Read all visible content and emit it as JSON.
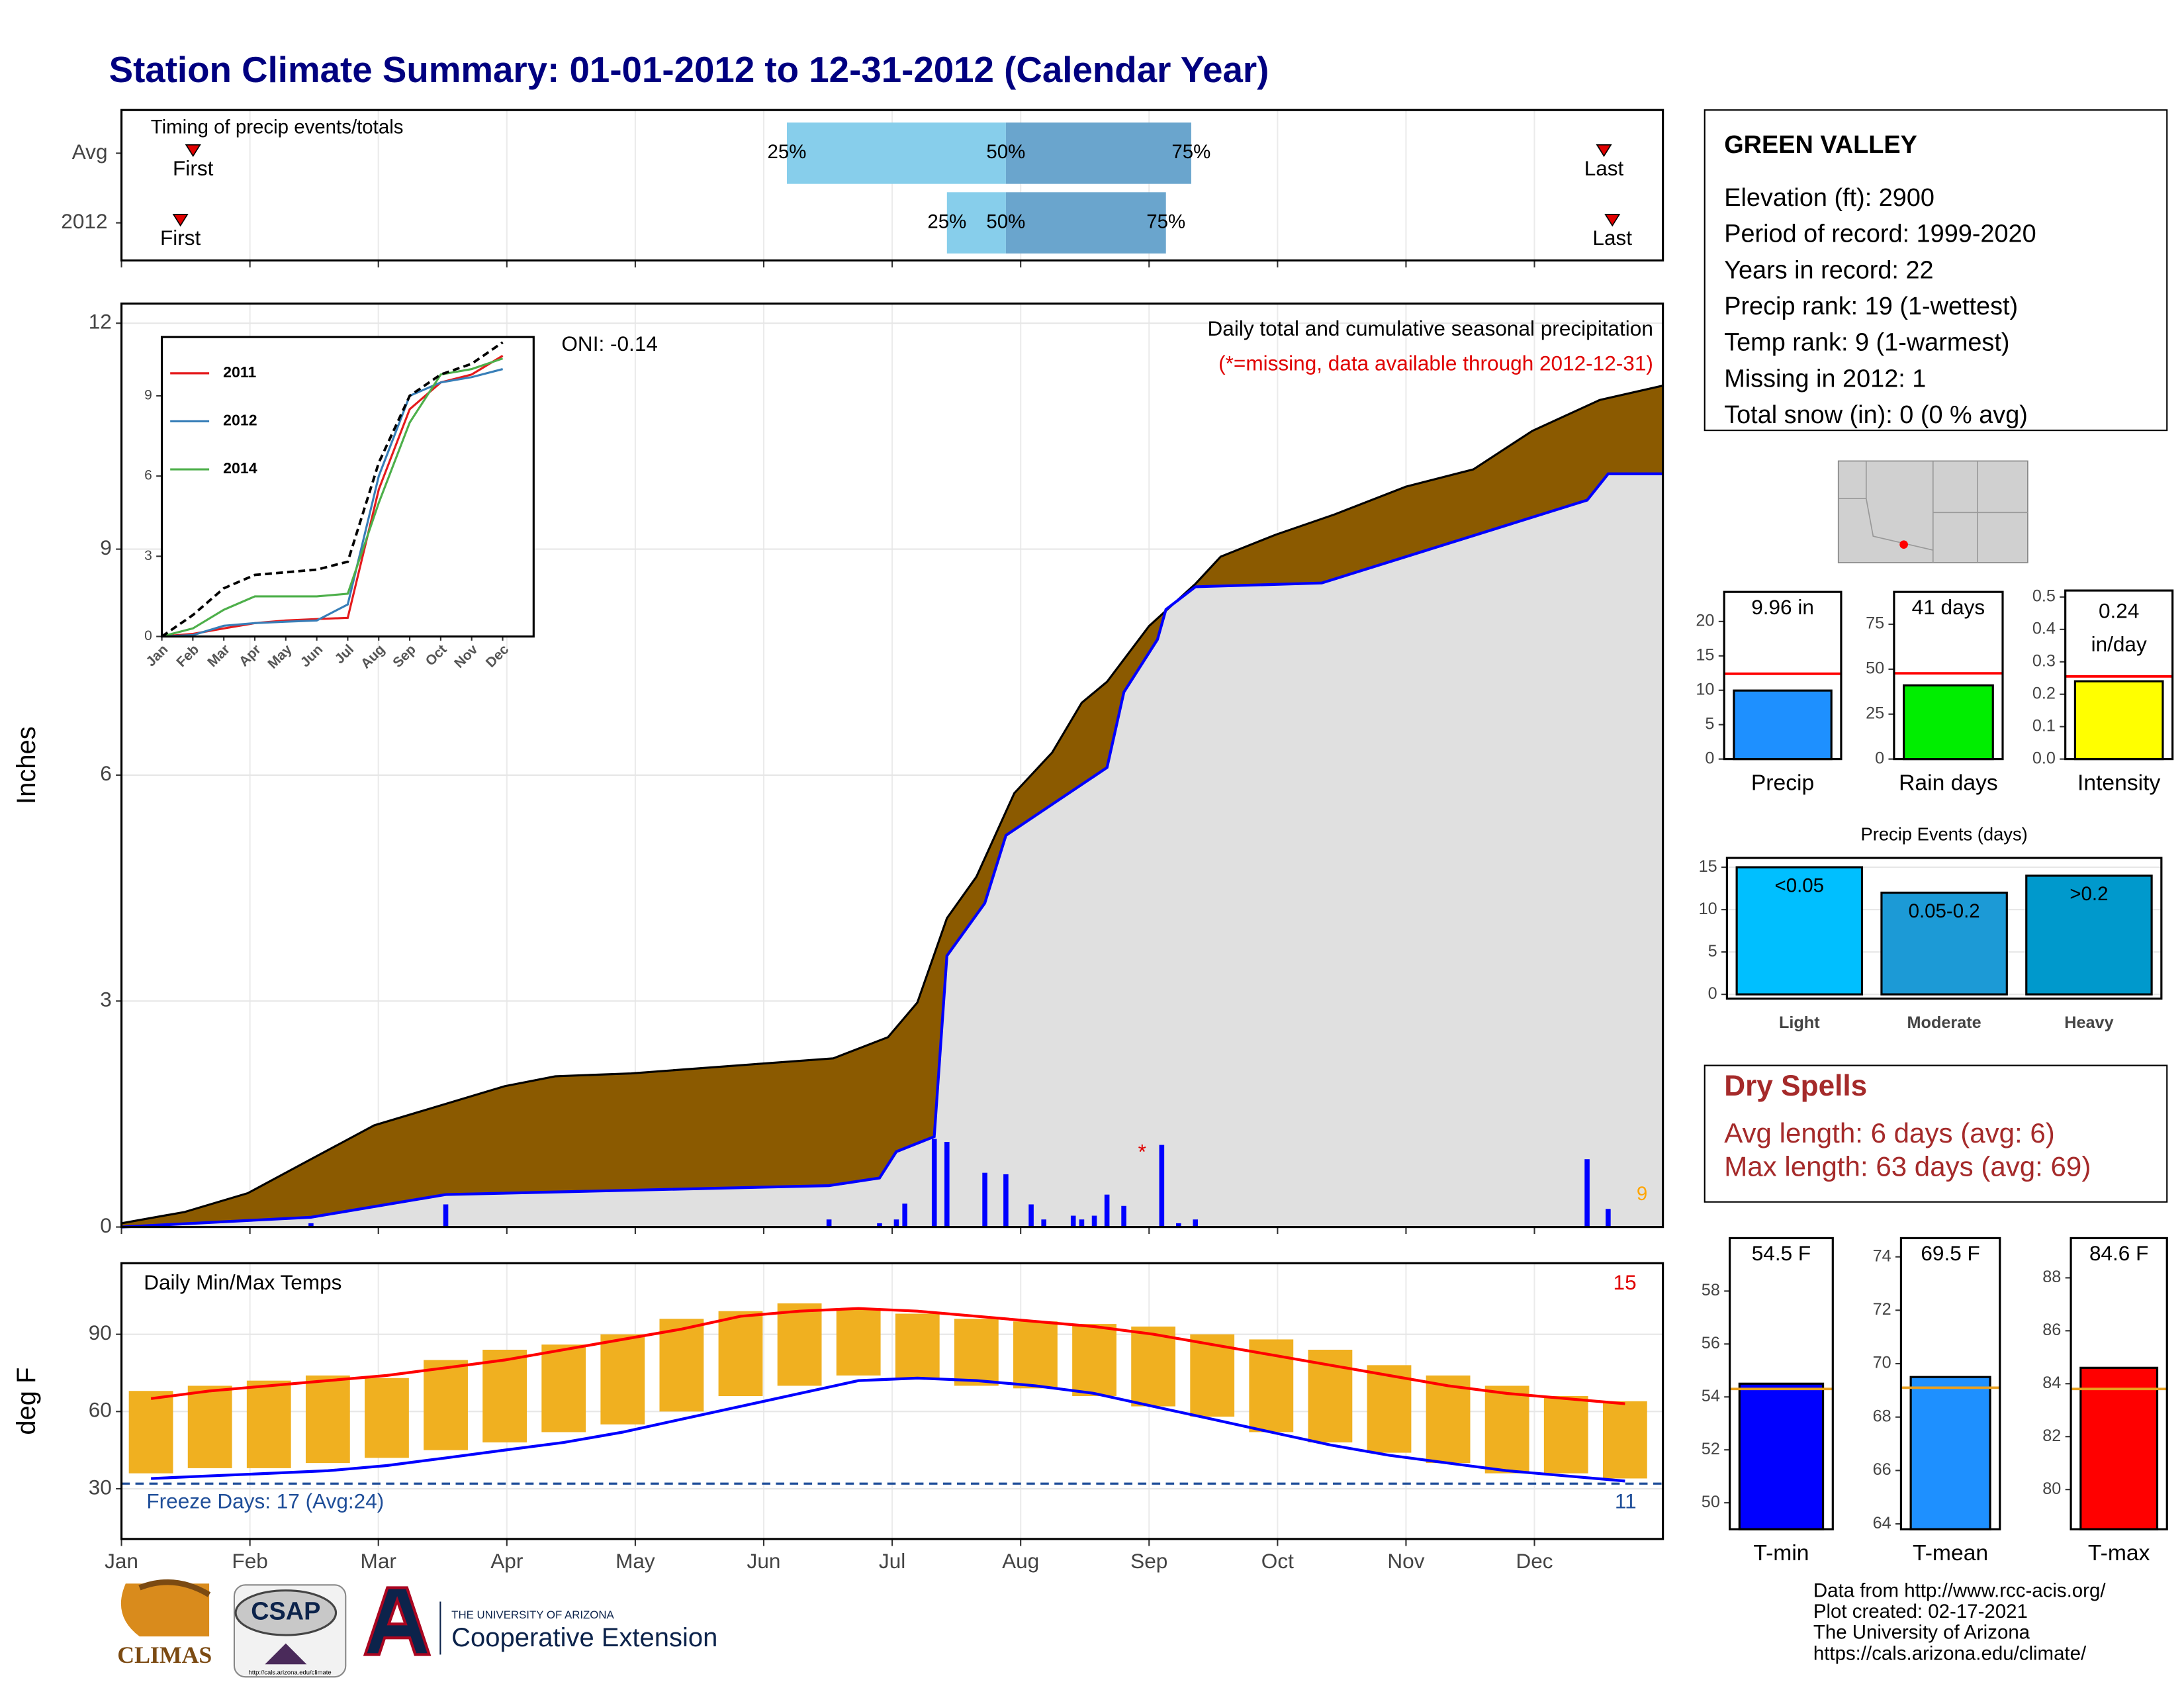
{
  "title": "Station Climate Summary: 01-01-2012 to 12-31-2012 (Calendar Year)",
  "station": {
    "name": "GREEN VALLEY",
    "lines": [
      "Elevation (ft): 2900",
      "Period of record: 1999-2020",
      "Years in record: 22",
      "Precip rank: 19 (1-wettest)",
      "Temp rank: 9 (1-warmest)",
      "Missing in 2012: 1",
      "Total snow (in): 0 (0 % avg)"
    ]
  },
  "dry_spells": {
    "title": "Dry Spells",
    "lines": [
      "Avg length: 6 days (avg: 6)",
      "Max length: 63 days (avg: 69)"
    ]
  },
  "footer": {
    "logos": [
      "CLIMAS",
      "CSAP",
      "http://cals.arizona.edu/climate",
      "THE UNIVERSITY OF ARIZONA",
      "Cooperative Extension"
    ],
    "credits": [
      "Data from http://www.rcc-acis.org/",
      "Plot created: 02-17-2021",
      "The University of Arizona",
      "https://cals.arizona.edu/climate/"
    ]
  },
  "chart_data": [
    {
      "type": "timing",
      "title": "Timing of precip events/totals",
      "categories": [
        "Avg",
        "2012"
      ],
      "xlim": [
        0,
        366
      ],
      "rows": [
        {
          "first": 17,
          "q25": 158,
          "q50": 210,
          "q75": 254,
          "last": 352
        },
        {
          "first": 14,
          "q25": 196,
          "q50": 210,
          "q75": 248,
          "last": 354
        }
      ],
      "labels": {
        "first": "First",
        "q25": "25%",
        "q50": "50%",
        "q75": "75%",
        "last": "Last"
      },
      "colors": [
        "#87ceeb",
        "#6aa5cd"
      ],
      "marker_color": "#e00000"
    },
    {
      "type": "area",
      "ylabel": "Inches",
      "xlim": [
        0,
        366
      ],
      "ylim": [
        0,
        12.26
      ],
      "yticks": [
        0,
        3,
        6,
        9,
        12
      ],
      "grid": true,
      "annotations": [
        "Daily total and cumulative seasonal precipitation",
        "(*=missing, data available through 2012-12-31)",
        "ONI: -0.14",
        "*",
        "9"
      ],
      "series": [
        {
          "color": "#8b5a00",
          "x": [
            0,
            15,
            30,
            45,
            60,
            91,
            103,
            121,
            152,
            169,
            182,
            189,
            196,
            203,
            212,
            221,
            228,
            234,
            244,
            255,
            261,
            274,
            288,
            305,
            321,
            335,
            351,
            366
          ],
          "values": [
            0.05,
            0.2,
            0.45,
            0.9,
            1.35,
            1.87,
            2.0,
            2.04,
            2.17,
            2.24,
            2.52,
            2.98,
            4.1,
            4.65,
            5.76,
            6.3,
            6.96,
            7.24,
            7.98,
            8.54,
            8.9,
            9.19,
            9.46,
            9.83,
            10.06,
            10.57,
            10.98,
            11.17
          ]
        },
        {
          "color": "#0000ff",
          "x": [
            0,
            45,
            77,
            168,
            180,
            184,
            193,
            196,
            205,
            210,
            234,
            238,
            246,
            248,
            255,
            285,
            348,
            353,
            366
          ],
          "values": [
            0,
            0.13,
            0.43,
            0.55,
            0.65,
            1.0,
            1.2,
            3.6,
            4.3,
            5.2,
            6.1,
            7.1,
            7.8,
            8.2,
            8.5,
            8.55,
            9.65,
            10.0,
            10.0
          ]
        }
      ],
      "daily": {
        "color": "#0000ff",
        "x": [
          45,
          77,
          168,
          180,
          184,
          186,
          193,
          196,
          205,
          210,
          216,
          219,
          226,
          228,
          231,
          234,
          238,
          247,
          251,
          255,
          348,
          353
        ],
        "values": [
          0.05,
          0.3,
          0.1,
          0.05,
          0.1,
          0.31,
          1.17,
          1.13,
          0.72,
          0.7,
          0.3,
          0.1,
          0.15,
          0.1,
          0.15,
          0.43,
          0.28,
          1.09,
          0.05,
          0.1,
          0.9,
          0.24
        ]
      }
    },
    {
      "type": "line",
      "categories": [
        "Jan",
        "Feb",
        "Mar",
        "Apr",
        "May",
        "Jun",
        "Jul",
        "Aug",
        "Sep",
        "Oct",
        "Nov",
        "Dec"
      ],
      "ylim": [
        0,
        11.2
      ],
      "yticks": [
        0,
        3,
        6,
        9
      ],
      "legend": "top-left",
      "series": [
        {
          "name": "2011",
          "color": "#e41a1c",
          "values": [
            0,
            0.1,
            0.3,
            0.5,
            0.6,
            0.65,
            0.7,
            5.5,
            8.5,
            9.5,
            9.8,
            10.5
          ]
        },
        {
          "name": "2012",
          "color": "#377eb8",
          "values": [
            0,
            0.05,
            0.4,
            0.5,
            0.55,
            0.6,
            1.2,
            6.0,
            9.0,
            9.5,
            9.7,
            10.0
          ]
        },
        {
          "name": "2014",
          "color": "#4daf4a",
          "values": [
            0,
            0.3,
            1.0,
            1.5,
            1.5,
            1.5,
            1.6,
            5.0,
            8.0,
            9.8,
            10.0,
            10.4
          ]
        },
        {
          "color": "#000000",
          "dashed": true,
          "values": [
            0,
            0.8,
            1.8,
            2.3,
            2.4,
            2.5,
            2.8,
            6.5,
            9.0,
            9.8,
            10.2,
            11.0
          ]
        }
      ]
    },
    {
      "type": "range",
      "title": "Daily Min/Max Temps",
      "ylabel": "deg F",
      "xlim": [
        0,
        366
      ],
      "ylim": [
        10.5,
        117.6
      ],
      "yticks": [
        30,
        60,
        90
      ],
      "grid": true,
      "categories": [
        "Jan",
        "Feb",
        "Mar",
        "Apr",
        "May",
        "Jun",
        "Jul",
        "Aug",
        "Sep",
        "Oct",
        "Nov",
        "Dec"
      ],
      "annotations": [
        "Freeze Days: 17 (Avg:24)",
        "15",
        "11"
      ],
      "freeze": 32,
      "bar_color": "#f0b020",
      "x": [
        7,
        21,
        35,
        49,
        63,
        77,
        91,
        105,
        119,
        133,
        147,
        161,
        175,
        189,
        203,
        217,
        231,
        245,
        259,
        273,
        287,
        301,
        315,
        329,
        343,
        357
      ],
      "high": [
        68,
        70,
        72,
        74,
        73,
        80,
        84,
        86,
        90,
        96,
        99,
        102,
        100,
        98,
        96,
        95,
        94,
        93,
        90,
        88,
        84,
        78,
        74,
        70,
        66,
        64
      ],
      "low": [
        36,
        38,
        38,
        40,
        42,
        45,
        48,
        52,
        55,
        60,
        66,
        70,
        74,
        73,
        70,
        69,
        66,
        62,
        58,
        52,
        48,
        44,
        40,
        36,
        36,
        34
      ],
      "series": [
        {
          "color": "#ff0000",
          "values": [
            65,
            68,
            70,
            72,
            74,
            77,
            80,
            84,
            88,
            92,
            97,
            99,
            100,
            99,
            97,
            95,
            93,
            90,
            86,
            82,
            78,
            74,
            70,
            67,
            65,
            63
          ]
        },
        {
          "color": "#0000ff",
          "values": [
            34,
            35,
            36,
            37,
            39,
            42,
            45,
            48,
            52,
            57,
            62,
            67,
            72,
            73,
            72,
            70,
            67,
            62,
            57,
            52,
            47,
            43,
            40,
            37,
            35,
            33
          ]
        }
      ]
    },
    {
      "type": "bar",
      "categories": [
        "Precip"
      ],
      "values": [
        9.96
      ],
      "value_labels": [
        "9.96 in"
      ],
      "reference": 12.4,
      "reference_color": "#ff0000",
      "colors": [
        "#1e90ff"
      ],
      "ylim": [
        0,
        24.3
      ],
      "yticks": [
        0,
        5,
        10,
        15,
        20
      ]
    },
    {
      "type": "bar",
      "categories": [
        "Rain days"
      ],
      "values": [
        41
      ],
      "value_labels": [
        "41 days"
      ],
      "reference": 47.7,
      "reference_color": "#ff0000",
      "colors": [
        "#00ee00"
      ],
      "ylim": [
        0,
        93
      ],
      "yticks": [
        0,
        25,
        50,
        75
      ]
    },
    {
      "type": "bar",
      "categories": [
        "Intensity"
      ],
      "values": [
        0.24
      ],
      "value_labels": [
        "0.24 in/day"
      ],
      "reference": 0.255,
      "reference_color": "#ff0000",
      "colors": [
        "#ffff00"
      ],
      "ylim": [
        0,
        0.52
      ],
      "yticks": [
        {
          "value": 0,
          "label": "0.0"
        },
        0.1,
        0.2,
        0.3,
        0.4,
        0.5
      ]
    },
    {
      "type": "bar",
      "title": "Precip Events (days)",
      "categories": [
        "Light",
        "Moderate",
        "Heavy"
      ],
      "values": [
        15,
        12,
        14
      ],
      "bar_labels": [
        "<0.05",
        "0.05-0.2",
        ">0.2"
      ],
      "colors": [
        "#00bfff",
        "#1c9ad6",
        "#0099cc"
      ],
      "ylim": [
        -0.5,
        16.1
      ],
      "yticks": [
        0,
        5,
        10,
        15
      ]
    },
    {
      "type": "bar",
      "categories": [
        "T-min"
      ],
      "values": [
        54.5
      ],
      "value_labels": [
        "54.5 F"
      ],
      "reference": 54.3,
      "reference_color": "#e8a020",
      "colors": [
        "#0000ff"
      ],
      "ylim": [
        49,
        60
      ],
      "yticks": [
        50,
        52,
        54,
        56,
        58
      ]
    },
    {
      "type": "bar",
      "categories": [
        "T-mean"
      ],
      "values": [
        69.5
      ],
      "value_labels": [
        "69.5 F"
      ],
      "reference": 69.1,
      "reference_color": "#e8a020",
      "colors": [
        "#1e90ff"
      ],
      "ylim": [
        63.8,
        74.7
      ],
      "yticks": [
        64,
        66,
        68,
        70,
        72,
        74
      ]
    },
    {
      "type": "bar",
      "categories": [
        "T-max"
      ],
      "values": [
        84.6
      ],
      "value_labels": [
        "84.6 F"
      ],
      "reference": 83.8,
      "reference_color": "#e8a020",
      "colors": [
        "#ff0000"
      ],
      "ylim": [
        78.5,
        89.5
      ],
      "yticks": [
        80,
        82,
        84,
        86,
        88
      ]
    }
  ]
}
